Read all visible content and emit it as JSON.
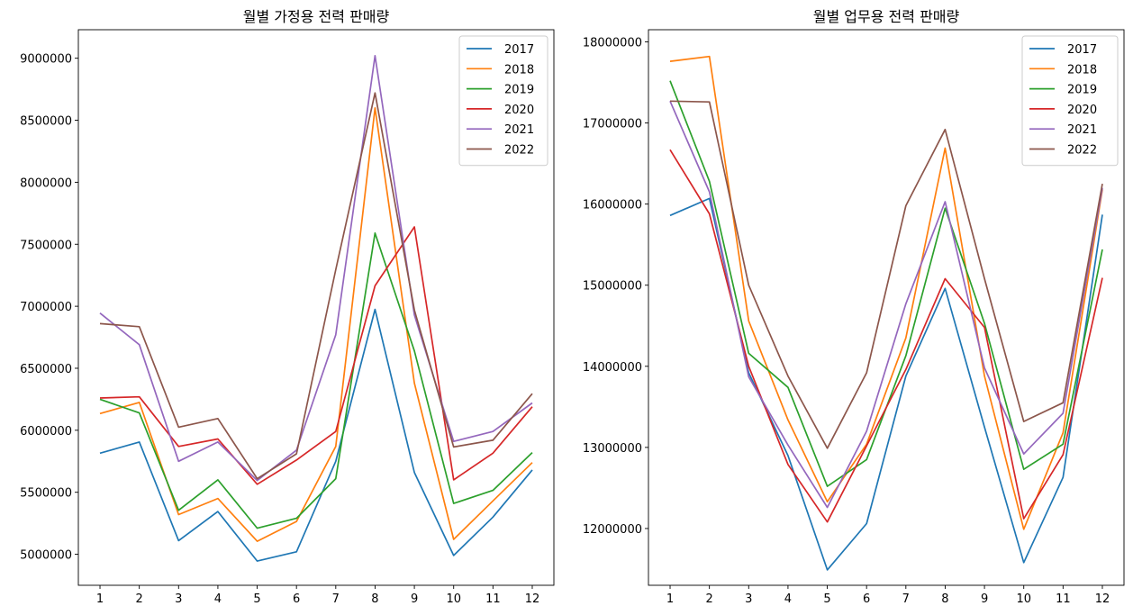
{
  "chart_data": [
    {
      "type": "line",
      "title": "월별 가정용 전력 판매량",
      "xlabel": "",
      "ylabel": "",
      "x": [
        1,
        2,
        3,
        4,
        5,
        6,
        7,
        8,
        9,
        10,
        11,
        12
      ],
      "xticks": [
        "1",
        "2",
        "3",
        "4",
        "5",
        "6",
        "7",
        "8",
        "9",
        "10",
        "11",
        "12"
      ],
      "yticks": [
        "5000000",
        "5500000",
        "6000000",
        "6500000",
        "7000000",
        "7500000",
        "8000000",
        "8500000",
        "9000000"
      ],
      "ylim": [
        4750000,
        9230000
      ],
      "legend": "top-right",
      "grid": false,
      "series": [
        {
          "name": "2017",
          "color": "#1f77b4",
          "values": [
            5815000,
            5905000,
            5110000,
            5345000,
            4945000,
            5020000,
            5750000,
            6975000,
            5660000,
            4990000,
            5300000,
            5680000
          ]
        },
        {
          "name": "2018",
          "color": "#ff7f0e",
          "values": [
            6135000,
            6225000,
            5320000,
            5450000,
            5105000,
            5265000,
            5870000,
            8600000,
            6380000,
            5120000,
            5430000,
            5740000
          ]
        },
        {
          "name": "2019",
          "color": "#2ca02c",
          "values": [
            6250000,
            6140000,
            5355000,
            5600000,
            5210000,
            5290000,
            5610000,
            7590000,
            6640000,
            5410000,
            5515000,
            5820000
          ]
        },
        {
          "name": "2020",
          "color": "#d62728",
          "values": [
            6260000,
            6270000,
            5870000,
            5930000,
            5565000,
            5760000,
            5990000,
            7165000,
            7640000,
            5600000,
            5815000,
            6190000
          ]
        },
        {
          "name": "2021",
          "color": "#9467bd",
          "values": [
            6945000,
            6690000,
            5750000,
            5905000,
            5595000,
            5840000,
            6770000,
            9020000,
            6930000,
            5910000,
            5990000,
            6220000
          ]
        },
        {
          "name": "2022",
          "color": "#8c564b",
          "values": [
            6860000,
            6835000,
            6025000,
            6095000,
            5610000,
            5810000,
            7295000,
            8720000,
            6970000,
            5865000,
            5920000,
            6295000
          ]
        }
      ]
    },
    {
      "type": "line",
      "title": "월별 업무용 전력 판매량",
      "xlabel": "",
      "ylabel": "",
      "x": [
        1,
        2,
        3,
        4,
        5,
        6,
        7,
        8,
        9,
        10,
        11,
        12
      ],
      "xticks": [
        "1",
        "2",
        "3",
        "4",
        "5",
        "6",
        "7",
        "8",
        "9",
        "10",
        "11",
        "12"
      ],
      "yticks": [
        "12000000",
        "13000000",
        "14000000",
        "15000000",
        "16000000",
        "17000000",
        "18000000"
      ],
      "ylim": [
        11300000,
        18150000
      ],
      "legend": "top-right",
      "grid": false,
      "series": [
        {
          "name": "2017",
          "color": "#1f77b4",
          "values": [
            15860000,
            16070000,
            13920000,
            12900000,
            11490000,
            12060000,
            13880000,
            14960000,
            13250000,
            11580000,
            12630000,
            15870000
          ]
        },
        {
          "name": "2018",
          "color": "#ff7f0e",
          "values": [
            17760000,
            17820000,
            14560000,
            13340000,
            12330000,
            13040000,
            14350000,
            16690000,
            13880000,
            11990000,
            13180000,
            16180000
          ]
        },
        {
          "name": "2019",
          "color": "#2ca02c",
          "values": [
            17520000,
            16280000,
            14160000,
            13740000,
            12520000,
            12850000,
            14130000,
            15950000,
            14530000,
            12730000,
            13040000,
            15440000
          ]
        },
        {
          "name": "2020",
          "color": "#d62728",
          "values": [
            16670000,
            15880000,
            14000000,
            12790000,
            12080000,
            13020000,
            13960000,
            15080000,
            14480000,
            12120000,
            12910000,
            15090000
          ]
        },
        {
          "name": "2021",
          "color": "#9467bd",
          "values": [
            17270000,
            16150000,
            13870000,
            13030000,
            12260000,
            13200000,
            14770000,
            16030000,
            13980000,
            12920000,
            13420000,
            16200000
          ]
        },
        {
          "name": "2022",
          "color": "#8c564b",
          "values": [
            17270000,
            17260000,
            15000000,
            13880000,
            12990000,
            13920000,
            15980000,
            16920000,
            15080000,
            13320000,
            13550000,
            16250000
          ]
        }
      ]
    }
  ]
}
